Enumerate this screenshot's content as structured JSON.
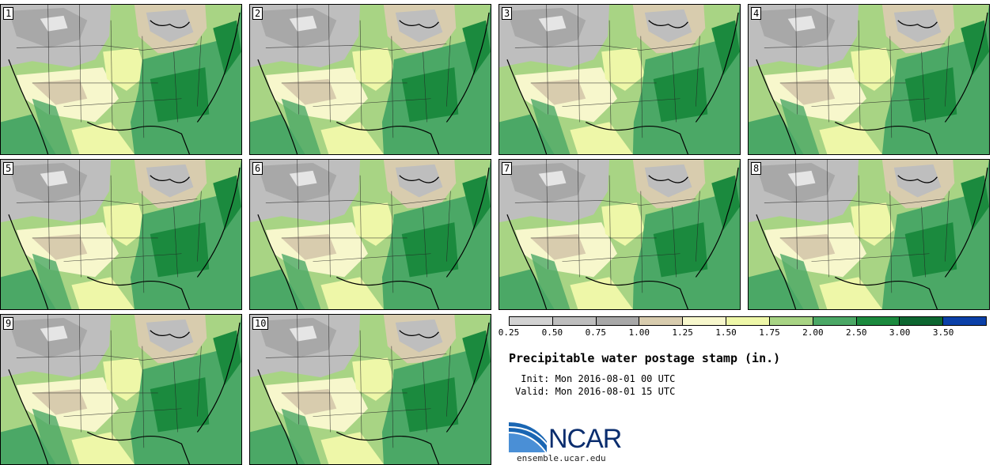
{
  "panels": [
    {
      "label": "1"
    },
    {
      "label": "2"
    },
    {
      "label": "3"
    },
    {
      "label": "4"
    },
    {
      "label": "5"
    },
    {
      "label": "6"
    },
    {
      "label": "7"
    },
    {
      "label": "8"
    },
    {
      "label": "9"
    },
    {
      "label": "10"
    }
  ],
  "colorbar": {
    "colors": [
      "#d2d2d2",
      "#bebebe",
      "#a8a8a8",
      "#d8ccae",
      "#f7f7cc",
      "#eef7a8",
      "#a8d484",
      "#4ba866",
      "#1b8a3e",
      "#0d6630",
      "#0b40a8"
    ],
    "ticks": [
      "0.25",
      "0.50",
      "0.75",
      "1.00",
      "1.25",
      "1.50",
      "1.75",
      "2.00",
      "2.50",
      "3.00",
      "3.50"
    ]
  },
  "title": "Precipitable water postage stamp (in.)",
  "init": " Init: Mon 2016-08-01 00 UTC",
  "valid": "Valid: Mon 2016-08-01 15 UTC",
  "logo": {
    "text": "NCAR",
    "site": "ensemble.ucar.edu",
    "color": "#1a66b3"
  }
}
